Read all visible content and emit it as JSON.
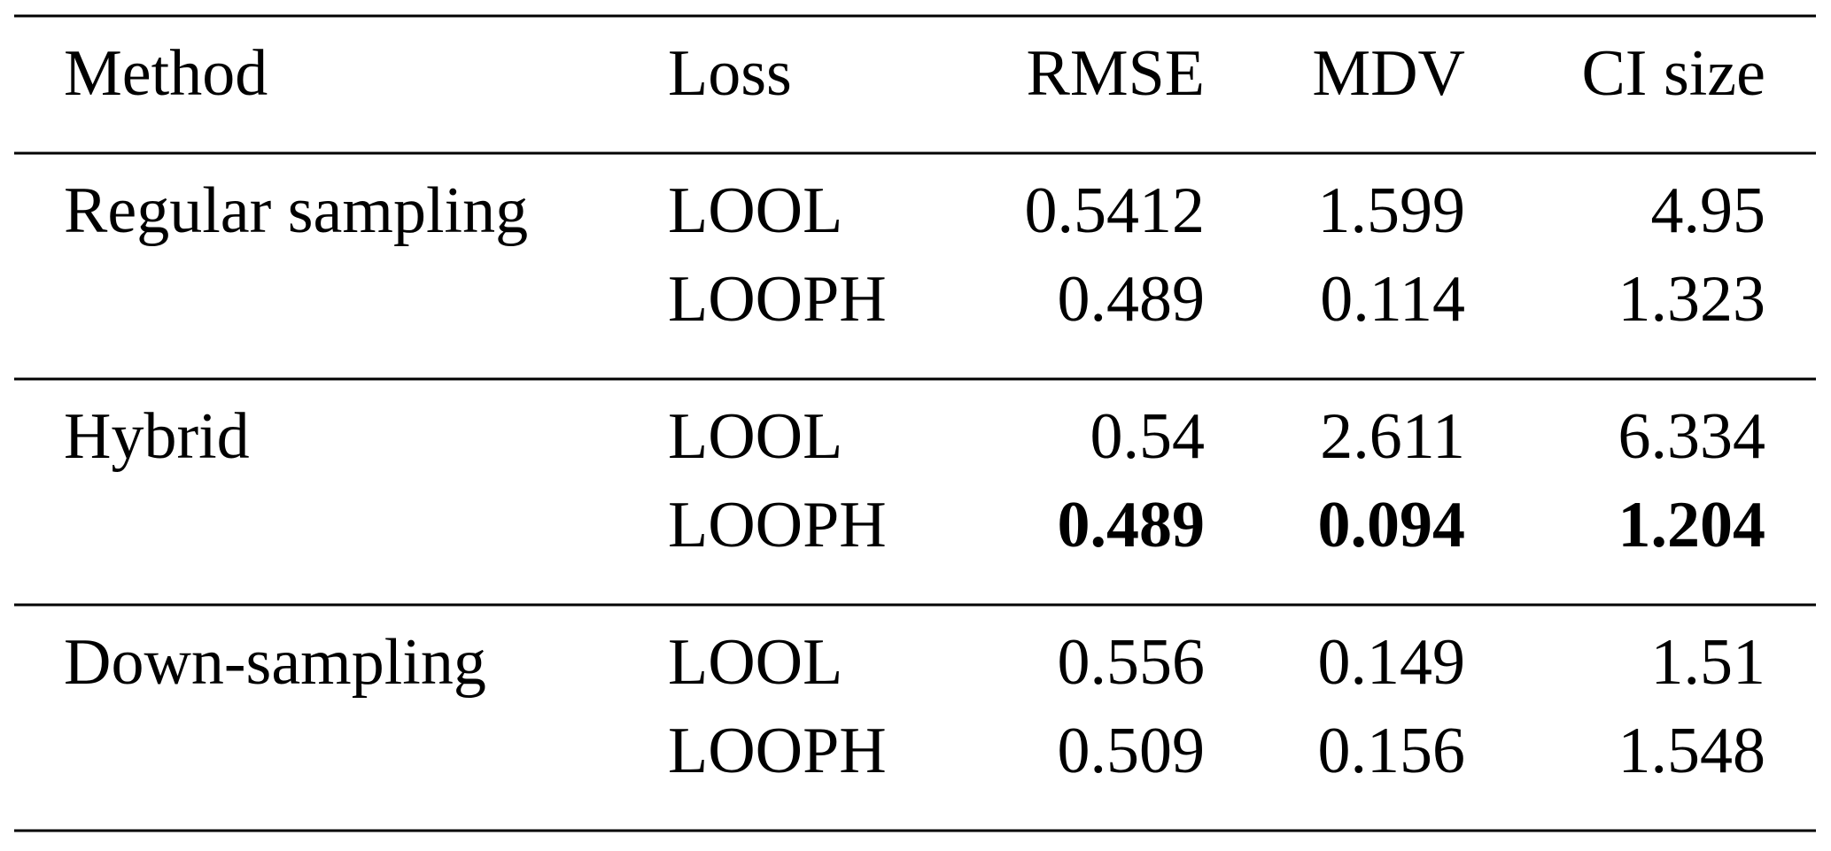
{
  "table": {
    "header": [
      "Method",
      "Loss",
      "RMSE",
      "MDV",
      "CI size"
    ],
    "groups": [
      {
        "method": "Regular sampling",
        "rows": [
          {
            "loss": "LOOL",
            "values": [
              0.5412,
              1.599,
              4.95
            ]
          },
          {
            "loss": "LOOPH",
            "values": [
              0.489,
              0.114,
              1.323
            ]
          }
        ]
      },
      {
        "method": "Hybrid",
        "rows": [
          {
            "loss": "LOOL",
            "values": [
              0.54,
              2.611,
              6.334
            ]
          },
          {
            "loss": "LOOPH",
            "values": [
              0.489,
              0.094,
              1.204
            ],
            "bold": true
          }
        ]
      },
      {
        "method": "Down-sampling",
        "rows": [
          {
            "loss": "LOOL",
            "values": [
              0.556,
              0.149,
              1.51
            ]
          },
          {
            "loss": "LOOPH",
            "values": [
              0.509,
              0.156,
              1.548
            ]
          }
        ]
      }
    ]
  }
}
